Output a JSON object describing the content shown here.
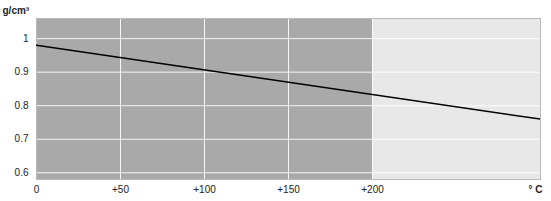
{
  "chart_data": {
    "type": "line",
    "y_label": "g/cm³",
    "x_label": "° C",
    "x": [
      0,
      300
    ],
    "values": [
      0.98,
      0.76
    ],
    "color": "#000000",
    "xlim": [
      0,
      300
    ],
    "xticks": [
      0,
      {
        "value": 50,
        "label": "+50"
      },
      {
        "value": 100,
        "label": "+100"
      },
      {
        "value": 150,
        "label": "+150"
      },
      {
        "value": 200,
        "label": "+200"
      }
    ],
    "ylim": [
      0.58,
      1.06
    ],
    "yticks": [
      0.6,
      0.7,
      0.8,
      0.9,
      1
    ],
    "grid": true,
    "bands": [
      {
        "x": [
          0,
          200
        ],
        "color": "#a9a9a9"
      },
      {
        "x": [
          200,
          300
        ],
        "color": "#e8e8e8"
      }
    ]
  }
}
